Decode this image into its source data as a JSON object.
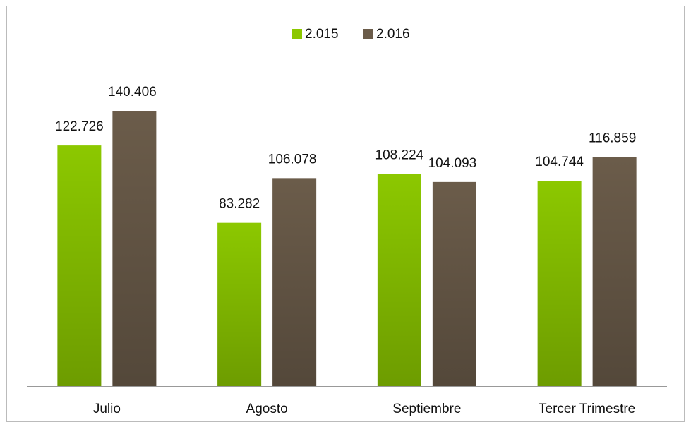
{
  "chart_data": {
    "type": "bar",
    "categories": [
      "Julio",
      "Agosto",
      "Septiembre",
      "Tercer Trimestre"
    ],
    "series": [
      {
        "name": "2.015",
        "color": "#8cc800",
        "values": [
          122726,
          83282,
          108224,
          104744
        ],
        "value_labels": [
          "122.726",
          "83.282",
          "108.224",
          "104.744"
        ]
      },
      {
        "name": "2.016",
        "color": "#6b5c4a",
        "values": [
          140406,
          106078,
          104093,
          116859
        ],
        "value_labels": [
          "140.406",
          "106.078",
          "104.093",
          "116.859"
        ]
      }
    ],
    "legend": "top"
  }
}
